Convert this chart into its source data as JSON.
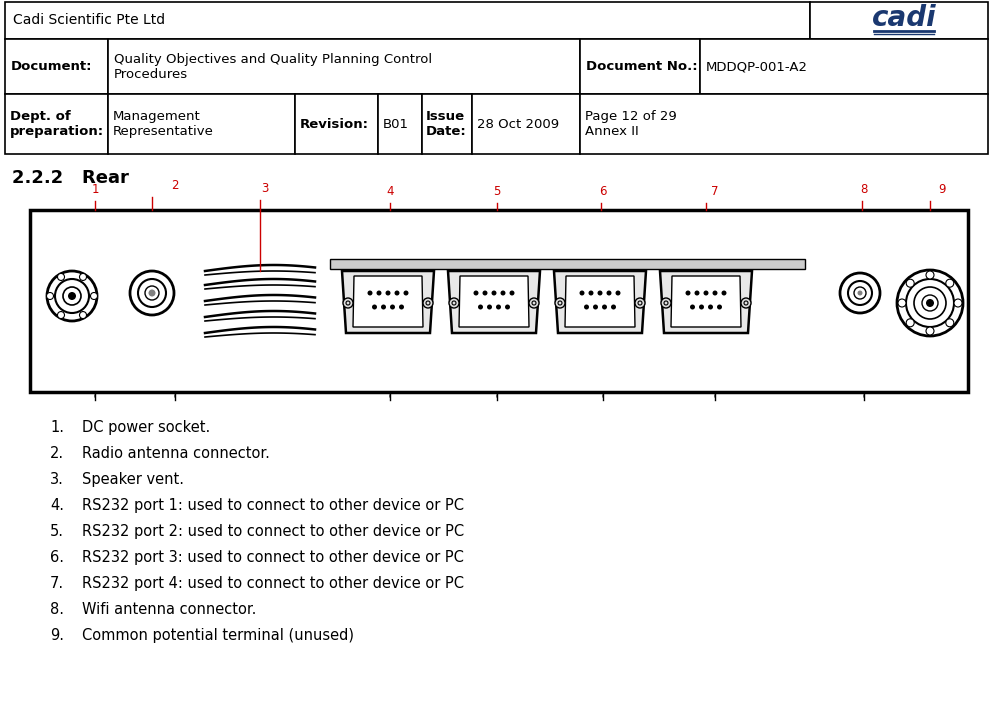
{
  "header_company": "Cadi Scientific Pte Ltd",
  "header_doc_label": "Document:",
  "header_doc_value": "Quality Objectives and Quality Planning Control\nProcedures",
  "header_docno_label": "Document No.:",
  "header_docno_value": "MDDQP-001-A2",
  "header_dept_label": "Dept. of\npreparation:",
  "header_dept_value": "Management\nRepresentative",
  "header_rev_label": "Revision:",
  "header_rev_value": "B01",
  "header_issue_label": "Issue\nDate:",
  "header_issue_value": "28 Oct 2009",
  "header_page_value": "Page 12 of 29\nAnnex II",
  "section_title": "2.2.2   Rear",
  "items": [
    "DC power socket.",
    "Radio antenna connector.",
    "Speaker vent.",
    "RS232 port 1: used to connect to other device or PC",
    "RS232 port 2: used to connect to other device or PC",
    "RS232 port 3: used to connect to other device or PC",
    "RS232 port 4: used to connect to other device or PC",
    "Wifi antenna connector.",
    "Common potential terminal (unused)"
  ],
  "label_color": "#cc0000",
  "border_color": "#000000",
  "bg_color": "#ffffff",
  "logo_color": "#1a3870"
}
